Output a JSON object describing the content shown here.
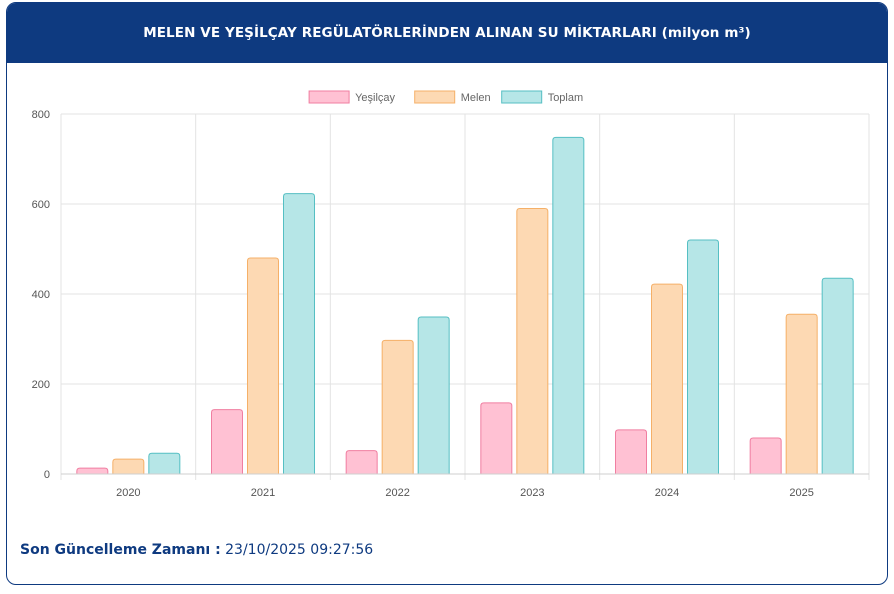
{
  "header": {
    "title": "MELEN VE YEŞİLÇAY REGÜLATÖRLERİNDEN ALINAN SU MİKTARLARI (milyon m³)"
  },
  "footer": {
    "label": "Son Güncelleme Zamanı :",
    "value": "23/10/2025 09:27:56"
  },
  "chart_data": {
    "type": "bar",
    "categories": [
      "2020",
      "2021",
      "2022",
      "2023",
      "2024",
      "2025"
    ],
    "series": [
      {
        "name": "Yeşilçay",
        "values": [
          13,
          143,
          52,
          158,
          98,
          80
        ],
        "color": "#ffc1d3",
        "border": "#f07ea1"
      },
      {
        "name": "Melen",
        "values": [
          33,
          480,
          297,
          590,
          422,
          355
        ],
        "color": "#fdd9b3",
        "border": "#f5b068"
      },
      {
        "name": "Toplam",
        "values": [
          46,
          623,
          349,
          748,
          520,
          435
        ],
        "color": "#b6e6e7",
        "border": "#55bfc3"
      }
    ],
    "ylim": [
      0,
      800
    ],
    "yticks": [
      0,
      200,
      400,
      600,
      800
    ],
    "grid": true,
    "legend": "top-center"
  }
}
